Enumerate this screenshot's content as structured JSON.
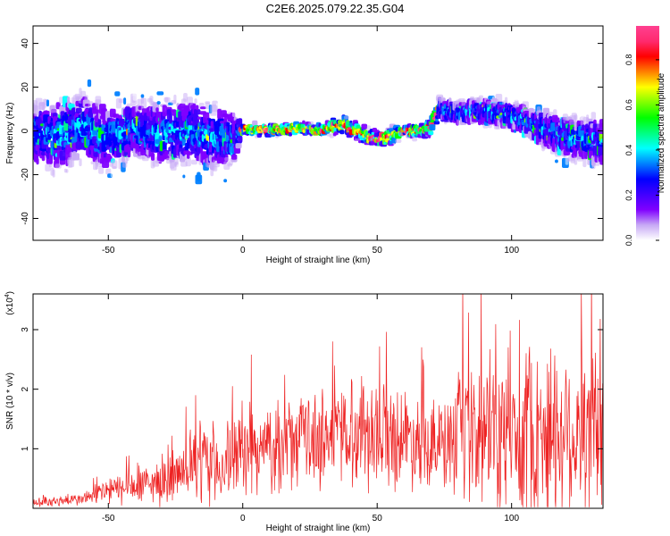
{
  "title": "C2E6.2025.079.22.35.G04",
  "chart_data": [
    {
      "type": "heatmap",
      "xlabel": "Height of straight line (km)",
      "ylabel": "Frequency (Hz)",
      "xlim": [
        -78,
        134
      ],
      "ylim": [
        -50,
        48
      ],
      "xticks": [
        -50,
        0,
        50,
        100
      ],
      "yticks": [
        -40,
        -20,
        0,
        20,
        40
      ],
      "colorbar": {
        "label": "Normalized spectral amplitude",
        "range": [
          0,
          0.95
        ],
        "ticks": [
          0.0,
          0.2,
          0.4,
          0.6,
          0.8
        ],
        "colors": [
          "#ffffff",
          "#c7a9f5",
          "#8000ff",
          "#4000ff",
          "#0000ff",
          "#0080ff",
          "#00ffff",
          "#00ff80",
          "#00ff00",
          "#80ff00",
          "#ffff00",
          "#ff8000",
          "#ff0000",
          "#ff2a6e",
          "#ff4090"
        ]
      },
      "ridge": {
        "x": [
          -78,
          -70,
          -60,
          -50,
          -40,
          -30,
          -20,
          -10,
          -3,
          0,
          10,
          20,
          30,
          38,
          45,
          50,
          55,
          60,
          65,
          70,
          73,
          80,
          90,
          100,
          110,
          120,
          134
        ],
        "y": [
          -2,
          -3,
          2,
          -4,
          1,
          -2,
          0,
          -3,
          -4,
          1,
          0.5,
          1,
          0.5,
          3,
          -2,
          -4,
          -2,
          0,
          0,
          2,
          10,
          8,
          9,
          7,
          2,
          -3,
          -5
        ],
        "spread": [
          14,
          16,
          15,
          14,
          13,
          14,
          15,
          14,
          12,
          2,
          2,
          2,
          2,
          3,
          3,
          3,
          3,
          2,
          2,
          3,
          4,
          4,
          5,
          5,
          7,
          9,
          10
        ]
      }
    },
    {
      "type": "line",
      "xlabel": "Height of straight line (km)",
      "ylabel": "SNR (10 * v/v)",
      "scale_label": "(x10",
      "scale_exp": "4",
      "xlim": [
        -78,
        134
      ],
      "ylim": [
        0,
        3.6
      ],
      "xticks": [
        -50,
        0,
        50,
        100
      ],
      "yticks": [
        1,
        2,
        3
      ],
      "color": "#ee2222",
      "envelope": {
        "x": [
          -78,
          -60,
          -50,
          -40,
          -30,
          -20,
          -15,
          -10,
          0,
          10,
          20,
          30,
          40,
          50,
          60,
          70,
          75,
          80,
          90,
          100,
          110,
          120,
          134
        ],
        "mean": [
          0.1,
          0.15,
          0.3,
          0.35,
          0.45,
          0.6,
          0.8,
          0.7,
          0.9,
          1.0,
          1.1,
          1.2,
          1.3,
          1.3,
          1.2,
          1.15,
          1.0,
          1.1,
          1.2,
          1.2,
          1.3,
          1.3,
          1.2
        ],
        "amp": [
          0.1,
          0.12,
          0.3,
          0.35,
          0.45,
          0.55,
          0.9,
          0.8,
          0.8,
          0.85,
          0.9,
          1.0,
          1.1,
          1.1,
          1.0,
          0.9,
          0.9,
          1.3,
          1.5,
          1.6,
          1.8,
          1.9,
          1.7
        ]
      }
    }
  ]
}
